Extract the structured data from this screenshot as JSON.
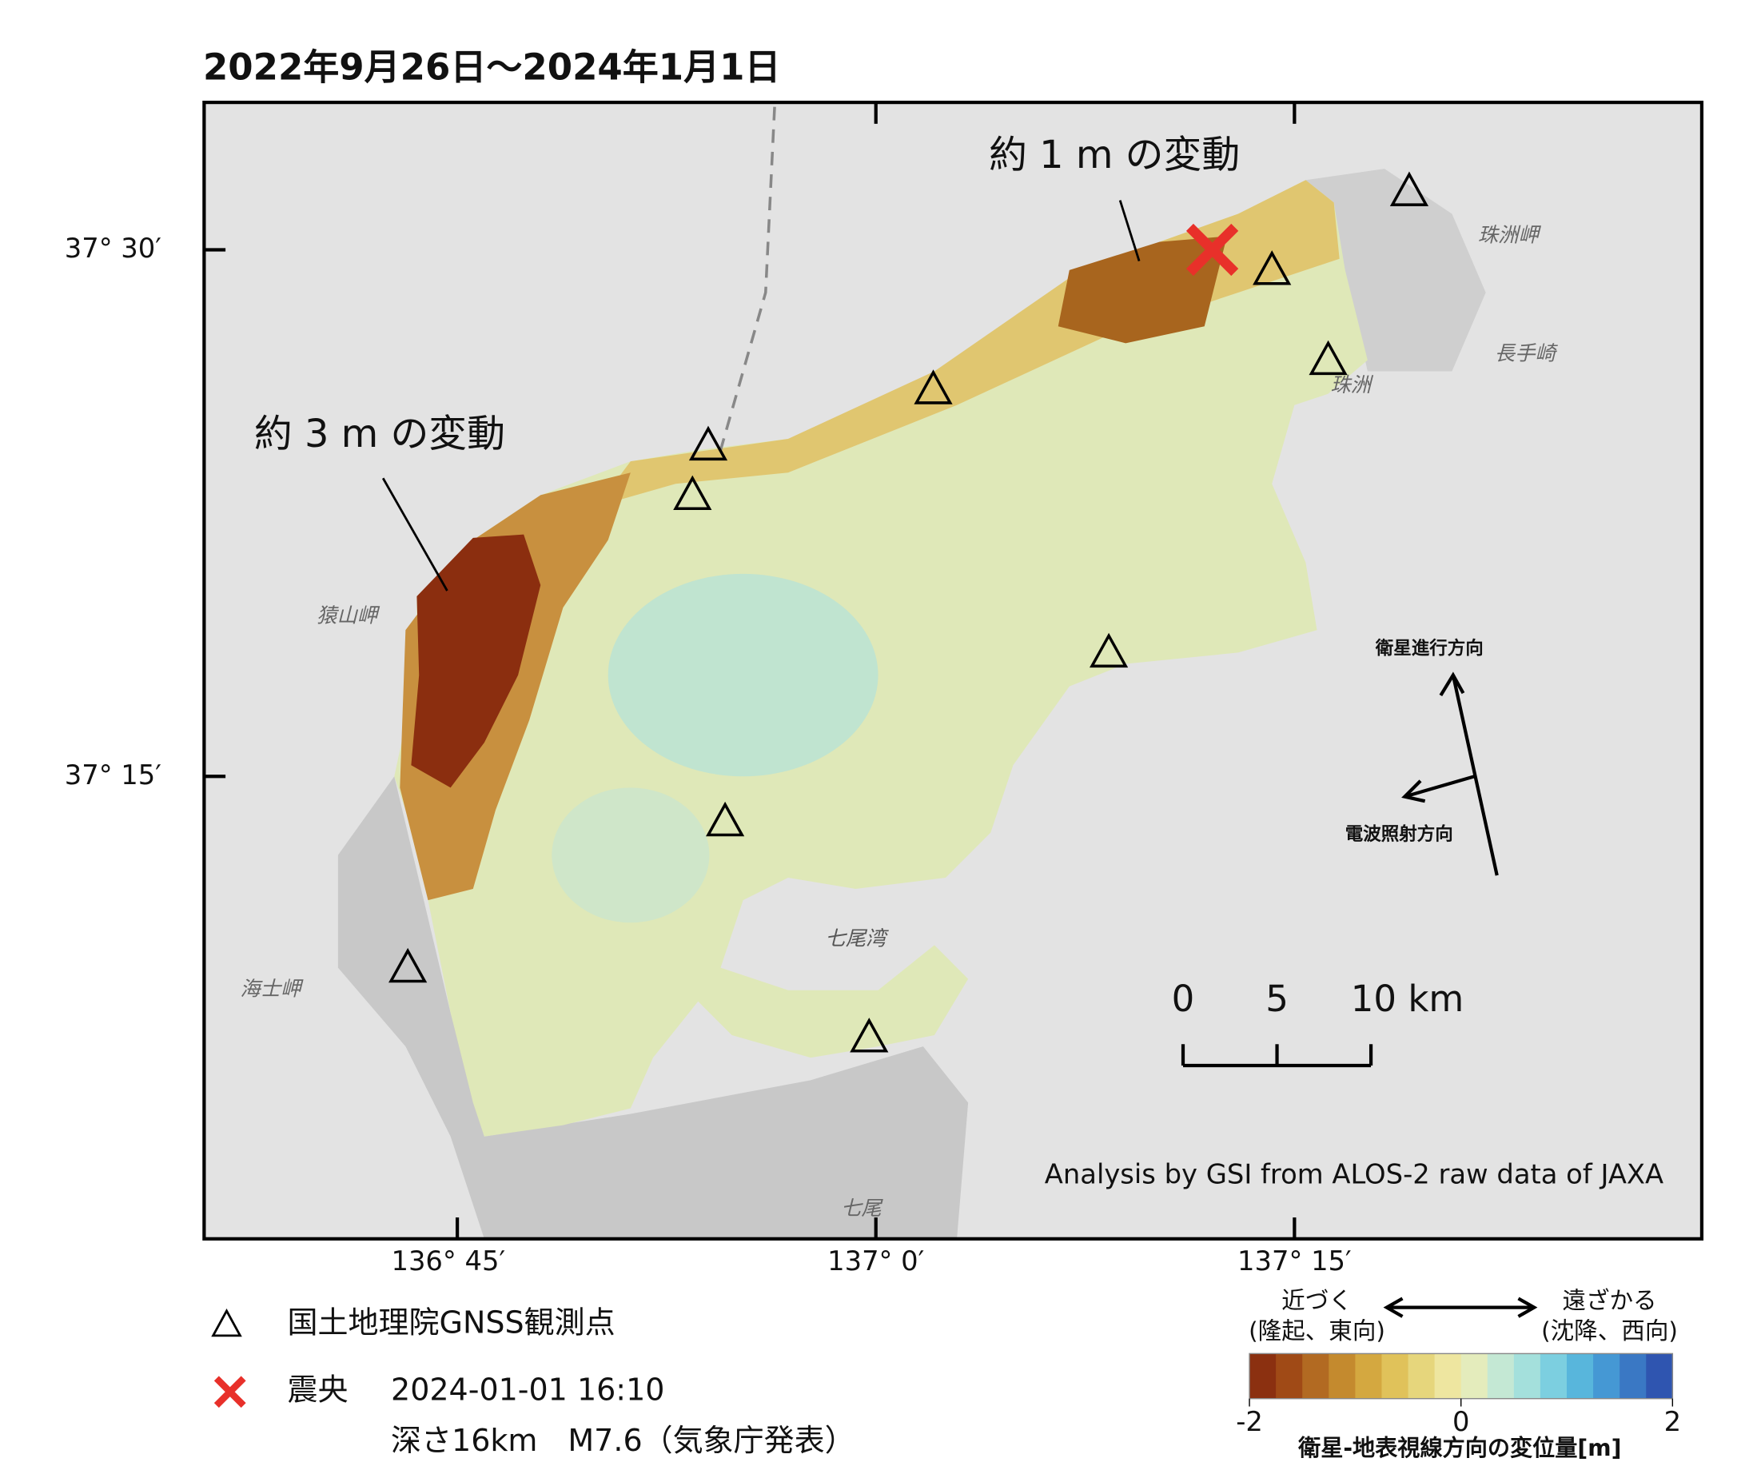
{
  "title": "2022年9月26日～2024年1月1日",
  "map": {
    "lat_labels": [
      "37° 30′",
      "37° 15′"
    ],
    "lon_labels": [
      "136° 45′",
      "137° 0′",
      "137° 15′"
    ],
    "annotations": [
      "約 1 m の変動",
      "約 3 m の変動"
    ],
    "place_names": [
      "珠洲岬",
      "長手崎",
      "珠洲",
      "猿山岬",
      "海士岬",
      "七尾湾",
      "七尾"
    ],
    "directions": [
      "衛星進行方向",
      "電波照射方向"
    ],
    "scale_bar": {
      "ticks": [
        0,
        5,
        {
          "value": 10,
          "label": "10 km"
        }
      ]
    },
    "credit": "Analysis by GSI from ALOS-2 raw data of JAXA"
  },
  "legend": {
    "station": "国土地理院GNSS観測点",
    "epicenter": "震央",
    "epicenter_time": "2024-01-01 16:10",
    "epicenter_detail": "深さ16km　M7.6（気象庁発表）"
  },
  "colorbar": {
    "near": "近づく",
    "near_note": "(隆起、東向)",
    "far": "遠ざかる",
    "far_note": "(沈降、西向)",
    "lim": [
      -2,
      2
    ],
    "ticks": [
      -2,
      0,
      2
    ],
    "colors": [
      "#8b3010",
      "#a04a16",
      "#b26a22",
      "#c48a2e",
      "#d4a840",
      "#e0c25a",
      "#e6d67c",
      "#eee6a0",
      "#e4ecbc",
      "#c4e8d4",
      "#a4e0dc",
      "#7ccfe0",
      "#58b6dc",
      "#4598d4",
      "#3a78c4",
      "#2f55b0"
    ],
    "label": "衛星-地表視線方向の変位量[m]"
  }
}
